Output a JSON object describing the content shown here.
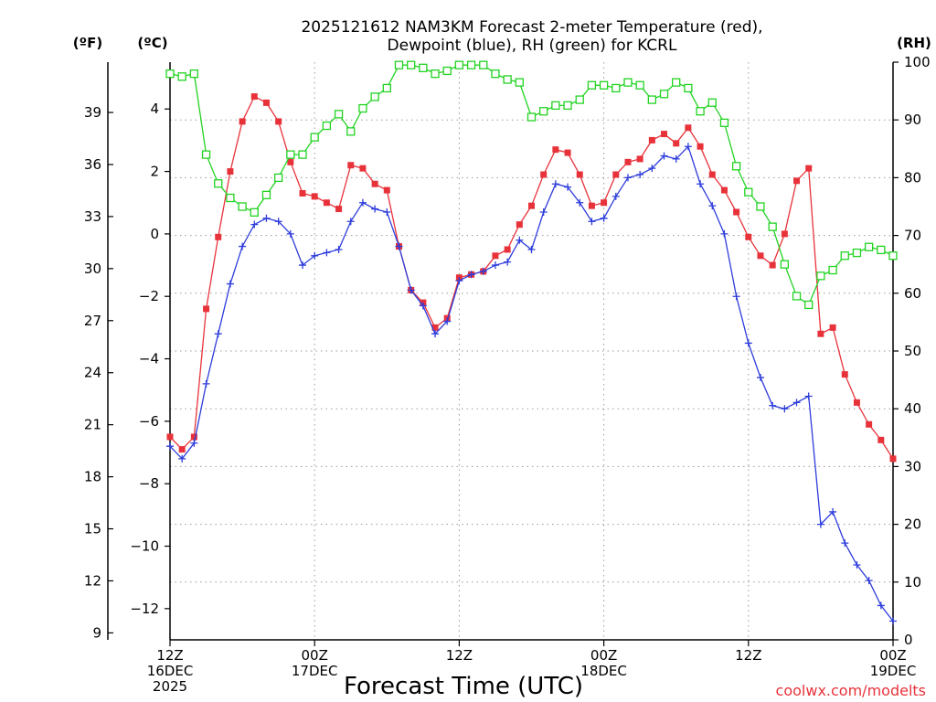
{
  "chart_data": {
    "type": "line",
    "title": [
      "2025121612 NAM3KM Forecast 2-meter Temperature (red),",
      "Dewpoint (blue), RH (green) for KCRL"
    ],
    "xlabel": "Forecast Time (UTC)",
    "credit": "coolwx.com/modelts",
    "units": {
      "f": "(ºF)",
      "c": "(ºC)",
      "rh": "(RH)"
    },
    "x_range_hours": [
      0,
      60
    ],
    "x_ticks": [
      {
        "hour": 0,
        "lines": [
          "12Z",
          "16DEC",
          "2025"
        ]
      },
      {
        "hour": 12,
        "lines": [
          "00Z",
          "17DEC"
        ]
      },
      {
        "hour": 24,
        "lines": [
          "12Z"
        ]
      },
      {
        "hour": 36,
        "lines": [
          "00Z",
          "18DEC"
        ]
      },
      {
        "hour": 48,
        "lines": [
          "12Z"
        ]
      },
      {
        "hour": 60,
        "lines": [
          "00Z",
          "19DEC"
        ]
      }
    ],
    "y_left_c": {
      "range": [
        -13,
        5.5
      ],
      "ticks": [
        4,
        2,
        0,
        -2,
        -4,
        -6,
        -8,
        -10,
        -12
      ],
      "labels": [
        "4",
        "2",
        "0",
        "−2",
        "−4",
        "−6",
        "−8",
        "−10",
        "−12"
      ]
    },
    "y_left_f": {
      "ticks": [
        39,
        36,
        33,
        30,
        27,
        24,
        21,
        18,
        15,
        12,
        9
      ]
    },
    "y_right_rh": {
      "range": [
        0,
        100
      ],
      "ticks": [
        0,
        10,
        20,
        30,
        40,
        50,
        60,
        70,
        80,
        90,
        100
      ]
    },
    "series": [
      {
        "name": "Temperature",
        "axis": "c",
        "color": "#e8323a",
        "marker": "filled-square",
        "values": [
          -6.5,
          -6.9,
          -6.5,
          -2.4,
          -0.1,
          2.0,
          3.6,
          4.4,
          4.2,
          3.6,
          2.3,
          1.3,
          1.2,
          1.0,
          0.8,
          2.2,
          2.1,
          1.6,
          1.4,
          -0.4,
          -1.8,
          -2.2,
          -3.0,
          -2.7,
          -1.4,
          -1.3,
          -1.2,
          -0.7,
          -0.5,
          0.3,
          0.9,
          1.9,
          2.7,
          2.6,
          1.9,
          0.9,
          1.0,
          1.9,
          2.3,
          2.4,
          3.0,
          3.2,
          2.9,
          3.4,
          2.8,
          1.9,
          1.4,
          0.7,
          -0.1,
          -0.7,
          -1.0,
          0.0,
          1.7,
          2.1,
          -3.2,
          -3.0,
          -4.5,
          -5.4,
          -6.1,
          -6.6,
          -7.2
        ]
      },
      {
        "name": "Dewpoint",
        "axis": "c",
        "color": "#2d3cdb",
        "marker": "plus",
        "values": [
          -6.8,
          -7.2,
          -6.7,
          -4.8,
          -3.2,
          -1.6,
          -0.4,
          0.3,
          0.5,
          0.4,
          0.0,
          -1.0,
          -0.7,
          -0.6,
          -0.5,
          0.4,
          1.0,
          0.8,
          0.7,
          -0.4,
          -1.8,
          -2.3,
          -3.2,
          -2.8,
          -1.5,
          -1.3,
          -1.2,
          -1.0,
          -0.9,
          -0.2,
          -0.5,
          0.7,
          1.6,
          1.5,
          1.0,
          0.4,
          0.5,
          1.2,
          1.8,
          1.9,
          2.1,
          2.5,
          2.4,
          2.8,
          1.6,
          0.9,
          0.0,
          -2.0,
          -3.5,
          -4.6,
          -5.5,
          -5.6,
          -5.4,
          -5.2,
          -9.3,
          -8.9,
          -9.9,
          -10.6,
          -11.1,
          -11.9,
          -12.4
        ]
      },
      {
        "name": "RH",
        "axis": "rh",
        "color": "#22d322",
        "marker": "hollow-square",
        "values": [
          98,
          97.5,
          98,
          84,
          79,
          76.5,
          75,
          74,
          77,
          80,
          84,
          84,
          87,
          89,
          91,
          88,
          92,
          94,
          95.5,
          99.5,
          99.5,
          99,
          98,
          98.5,
          99.5,
          99.5,
          99.5,
          98,
          97,
          96.5,
          90.5,
          91.5,
          92.5,
          92.5,
          93.5,
          96,
          96,
          95.5,
          96.5,
          96,
          93.5,
          94.5,
          96.5,
          95.5,
          91.5,
          93,
          89.5,
          82,
          77.5,
          75,
          71.5,
          65,
          59.5,
          58,
          63,
          64,
          66.5,
          67,
          68,
          67.5,
          66.5
        ]
      }
    ]
  }
}
